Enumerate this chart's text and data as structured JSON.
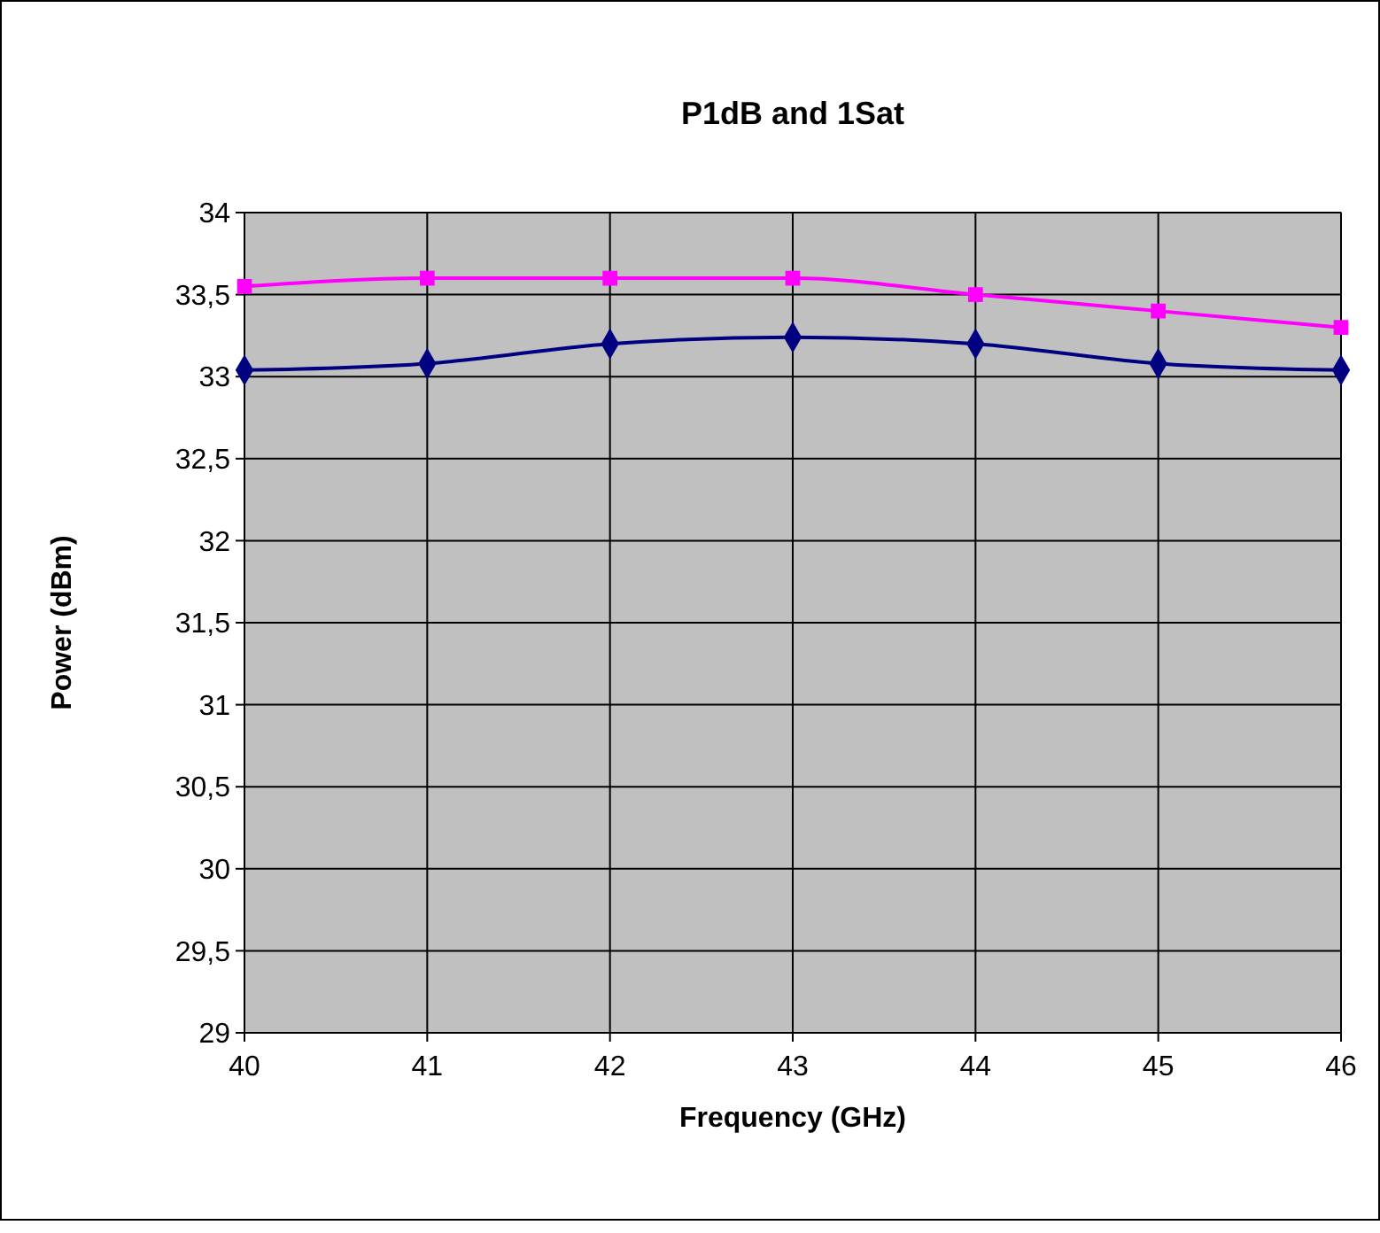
{
  "chart_data": {
    "type": "line",
    "title": "P1dB and 1Sat",
    "xlabel": "Frequency (GHz)",
    "ylabel": "Power (dBm)",
    "x": [
      40,
      41,
      42,
      43,
      44,
      45,
      46
    ],
    "series": [
      {
        "color": "#ff00ff",
        "marker": "square",
        "values": [
          33.55,
          33.6,
          33.6,
          33.6,
          33.5,
          33.4,
          33.3
        ]
      },
      {
        "color": "#000080",
        "marker": "diamond",
        "values": [
          33.04,
          33.08,
          33.2,
          33.24,
          33.2,
          33.08,
          33.04
        ]
      }
    ],
    "xlim": [
      40,
      46
    ],
    "xticks": [
      40,
      41,
      42,
      43,
      44,
      45,
      46
    ],
    "ylim": [
      29,
      34
    ],
    "yticks": [
      {
        "value": 29,
        "label": "29"
      },
      {
        "value": 29.5,
        "label": "29,5"
      },
      {
        "value": 30,
        "label": "30"
      },
      {
        "value": 30.5,
        "label": "30,5"
      },
      {
        "value": 31,
        "label": "31"
      },
      {
        "value": 31.5,
        "label": "31,5"
      },
      {
        "value": 32,
        "label": "32"
      },
      {
        "value": 32.5,
        "label": "32,5"
      },
      {
        "value": 33,
        "label": "33"
      },
      {
        "value": 33.5,
        "label": "33,5"
      },
      {
        "value": 34,
        "label": "34"
      }
    ],
    "grid": true
  }
}
